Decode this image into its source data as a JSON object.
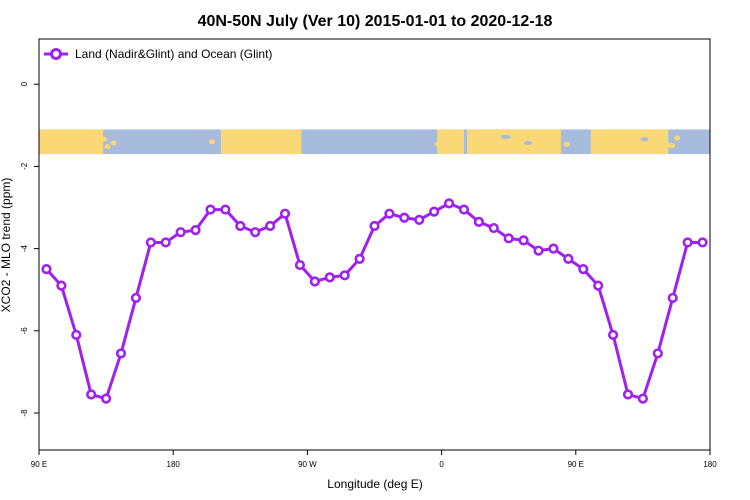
{
  "chart_data": {
    "type": "line",
    "title": "40N-50N July (Ver 10)   2015-01-01 to 2020-12-18",
    "xlabel": "Longitude (deg E)",
    "ylabel": "XCO2 - MLO trend (ppm)",
    "xlim": [
      90,
      540
    ],
    "ylim": [
      -8.9,
      1.1
    ],
    "x_ticks": [
      {
        "value": 90,
        "label": "90 E"
      },
      {
        "value": 180,
        "label": "180"
      },
      {
        "value": 270,
        "label": "90 W"
      },
      {
        "value": 360,
        "label": "0"
      },
      {
        "value": 450,
        "label": "90 E"
      },
      {
        "value": 540,
        "label": "180"
      }
    ],
    "y_ticks": [
      0,
      -2,
      -4,
      -6,
      -8
    ],
    "legend_position": "top-left",
    "map_strip": {
      "y_top": -1.1,
      "y_bottom": -1.7,
      "land_color": "#fbd876",
      "ocean_color": "#a7bcdc"
    },
    "series": [
      {
        "name": "Land (Nadir&Glint) and Ocean (Glint)",
        "color": "#a020f0",
        "x": [
          95,
          105,
          115,
          125,
          135,
          145,
          155,
          165,
          175,
          185,
          195,
          205,
          215,
          225,
          235,
          245,
          255,
          265,
          275,
          285,
          295,
          305,
          315,
          325,
          335,
          345,
          355,
          365,
          375,
          385,
          395,
          405,
          415,
          425,
          435,
          445,
          455,
          465,
          475,
          485,
          495,
          505,
          515,
          525,
          535
        ],
        "y": [
          -4.5,
          -4.9,
          -6.1,
          -7.55,
          -7.65,
          -6.55,
          -5.2,
          -3.85,
          -3.85,
          -3.6,
          -3.55,
          -3.05,
          -3.05,
          -3.45,
          -3.6,
          -3.45,
          -3.15,
          -4.4,
          -4.8,
          -4.7,
          -4.65,
          -4.25,
          -3.45,
          -3.15,
          -3.25,
          -3.3,
          -3.1,
          -2.9,
          -3.05,
          -3.35,
          -3.5,
          -3.75,
          -3.8,
          -4.05,
          -4.0,
          -4.25,
          -4.5,
          -4.9,
          -6.1,
          -7.55,
          -7.65,
          -6.55,
          -5.2,
          -3.85,
          -3.85
        ]
      }
    ]
  }
}
